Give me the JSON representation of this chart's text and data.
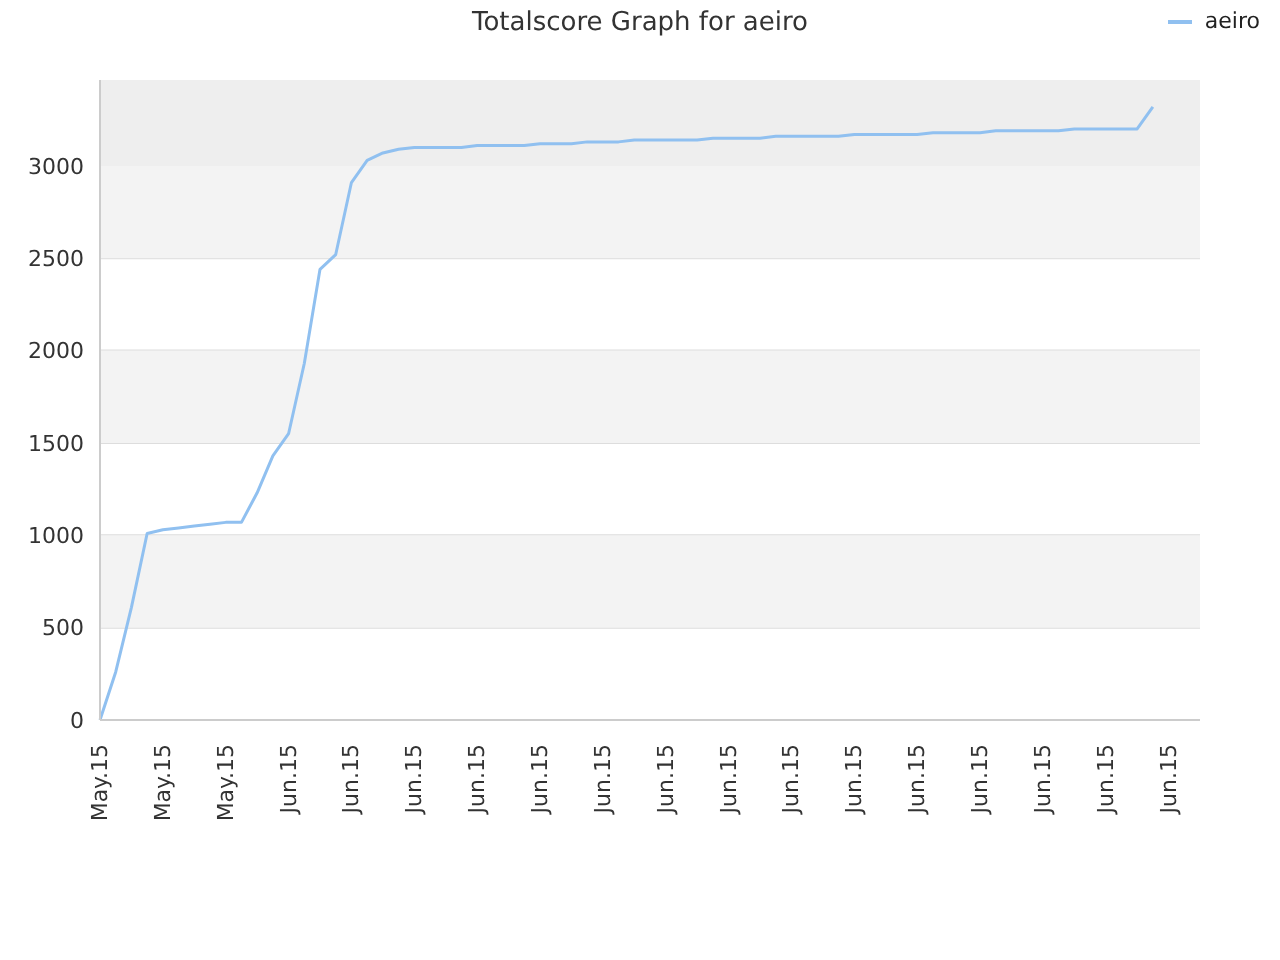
{
  "chart_data": {
    "type": "line",
    "title": "Totalscore Graph for aeiro",
    "categories": [
      "May.15",
      null,
      null,
      null,
      "May.15",
      null,
      null,
      null,
      "May.15",
      null,
      null,
      null,
      "Jun.15",
      null,
      null,
      null,
      "Jun.15",
      null,
      null,
      null,
      "Jun.15",
      null,
      null,
      null,
      "Jun.15",
      null,
      null,
      null,
      "Jun.15",
      null,
      null,
      null,
      "Jun.15",
      null,
      null,
      null,
      "Jun.15",
      null,
      null,
      null,
      "Jun.15",
      null,
      null,
      null,
      "Jun.15",
      null,
      null,
      null,
      "Jun.15",
      null,
      null,
      null,
      "Jun.15",
      null,
      null,
      null,
      "Jun.15",
      null,
      null,
      null,
      "Jun.15",
      null,
      null,
      null,
      "Jun.15",
      null,
      null,
      null,
      "Jun.15",
      null,
      null
    ],
    "series": [
      {
        "name": "aeiro",
        "color": "#90c0f0",
        "values": [
          0,
          260,
          610,
          1010,
          1030,
          1040,
          1050,
          1060,
          1070,
          1070,
          1230,
          1430,
          1550,
          1930,
          2440,
          2520,
          2910,
          3030,
          3070,
          3090,
          3100,
          3100,
          3100,
          3100,
          3110,
          3110,
          3110,
          3110,
          3120,
          3120,
          3120,
          3130,
          3130,
          3130,
          3140,
          3140,
          3140,
          3140,
          3140,
          3150,
          3150,
          3150,
          3150,
          3160,
          3160,
          3160,
          3160,
          3160,
          3170,
          3170,
          3170,
          3170,
          3170,
          3180,
          3180,
          3180,
          3180,
          3190,
          3190,
          3190,
          3190,
          3190,
          3200,
          3200,
          3200,
          3200,
          3200,
          3320,
          null,
          null,
          null
        ]
      }
    ],
    "ylim": [
      0,
      3465
    ],
    "yticks": [
      0,
      500,
      1000,
      1500,
      2000,
      2500,
      3000
    ],
    "bands": [
      {
        "axis": "y",
        "from": 500,
        "to": 1000,
        "color": "#f3f3f3"
      },
      {
        "axis": "y",
        "from": 1500,
        "to": 2000,
        "color": "#f3f3f3"
      },
      {
        "axis": "y",
        "from": 2500,
        "to": 3000,
        "color": "#f3f3f3"
      },
      {
        "axis": "y",
        "from": 3000,
        "to": 3465,
        "color": "#eeeeee"
      }
    ],
    "grid": "y",
    "legend": "top right",
    "marker": "none",
    "line_style": "solid"
  }
}
